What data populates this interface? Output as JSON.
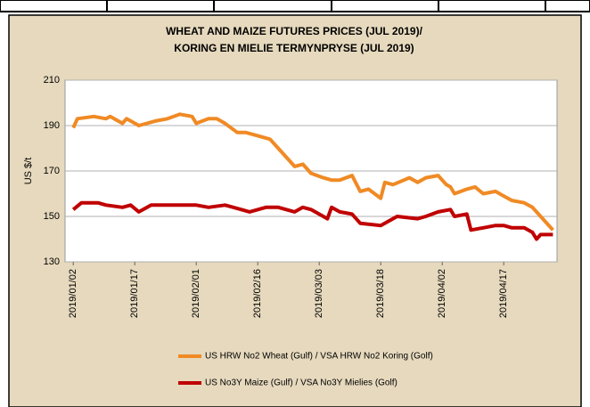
{
  "chart_data": {
    "type": "line",
    "title": [
      "WHEAT AND MAIZE FUTURES PRICES (JUL 2019)/",
      "KORING EN MIELIE TERMYNPRYSE (JUL 2019)"
    ],
    "y_label": "US $/t",
    "xlim": [
      "2018/12/31",
      "2019/04/30"
    ],
    "xticks": [
      "2019/01/02",
      "2019/01/17",
      "2019/02/01",
      "2019/02/16",
      "2019/03/03",
      "2019/03/18",
      "2019/04/02",
      "2019/04/17"
    ],
    "ylim": [
      130,
      210
    ],
    "yticks": [
      130,
      150,
      170,
      190,
      210
    ],
    "grid": true,
    "series": [
      {
        "name": "US HRW No2 Wheat (Gulf) / VSA HRW No2 Koring (Golf)",
        "color": "#f08a24",
        "x": [
          "2019/01/02",
          "2019/01/03",
          "2019/01/07",
          "2019/01/10",
          "2019/01/11",
          "2019/01/14",
          "2019/01/15",
          "2019/01/18",
          "2019/01/22",
          "2019/01/25",
          "2019/01/28",
          "2019/01/31",
          "2019/02/01",
          "2019/02/04",
          "2019/02/06",
          "2019/02/08",
          "2019/02/11",
          "2019/02/13",
          "2019/02/15",
          "2019/02/19",
          "2019/02/21",
          "2019/02/25",
          "2019/02/27",
          "2019/03/01",
          "2019/03/04",
          "2019/03/06",
          "2019/03/08",
          "2019/03/11",
          "2019/03/13",
          "2019/03/15",
          "2019/03/18",
          "2019/03/19",
          "2019/03/21",
          "2019/03/25",
          "2019/03/27",
          "2019/03/29",
          "2019/04/01",
          "2019/04/03",
          "2019/04/04",
          "2019/04/05",
          "2019/04/08",
          "2019/04/10",
          "2019/04/12",
          "2019/04/15",
          "2019/04/17",
          "2019/04/19",
          "2019/04/22",
          "2019/04/24",
          "2019/04/26",
          "2019/04/29"
        ],
        "values": [
          189,
          193,
          194,
          193,
          194,
          191,
          193,
          190,
          192,
          193,
          195,
          194,
          191,
          193,
          193,
          191,
          187,
          187,
          186,
          184,
          180,
          172,
          173,
          169,
          167,
          166,
          166,
          168,
          161,
          162,
          158,
          165,
          164,
          167,
          165,
          167,
          168,
          164,
          163,
          160,
          162,
          163,
          160,
          161,
          159,
          157,
          156,
          154,
          150,
          144
        ]
      },
      {
        "name": "US No3Y Maize (Gulf) / VSA No3Y Mielies (Golf)",
        "color": "#c00000",
        "x": [
          "2019/01/02",
          "2019/01/04",
          "2019/01/08",
          "2019/01/10",
          "2019/01/14",
          "2019/01/16",
          "2019/01/18",
          "2019/01/21",
          "2019/01/25",
          "2019/01/29",
          "2019/02/01",
          "2019/02/04",
          "2019/02/08",
          "2019/02/12",
          "2019/02/14",
          "2019/02/18",
          "2019/02/21",
          "2019/02/25",
          "2019/02/27",
          "2019/03/01",
          "2019/03/05",
          "2019/03/06",
          "2019/03/08",
          "2019/03/11",
          "2019/03/13",
          "2019/03/18",
          "2019/03/20",
          "2019/03/22",
          "2019/03/27",
          "2019/03/29",
          "2019/04/01",
          "2019/04/04",
          "2019/04/05",
          "2019/04/08",
          "2019/04/09",
          "2019/04/12",
          "2019/04/15",
          "2019/04/17",
          "2019/04/19",
          "2019/04/22",
          "2019/04/24",
          "2019/04/25",
          "2019/04/26",
          "2019/04/29"
        ],
        "values": [
          153,
          156,
          156,
          155,
          154,
          155,
          152,
          155,
          155,
          155,
          155,
          154,
          155,
          153,
          152,
          154,
          154,
          152,
          154,
          153,
          149,
          154,
          152,
          151,
          147,
          146,
          148,
          150,
          149,
          150,
          152,
          153,
          150,
          151,
          144,
          145,
          146,
          146,
          145,
          145,
          143,
          140,
          142,
          142
        ]
      }
    ]
  }
}
